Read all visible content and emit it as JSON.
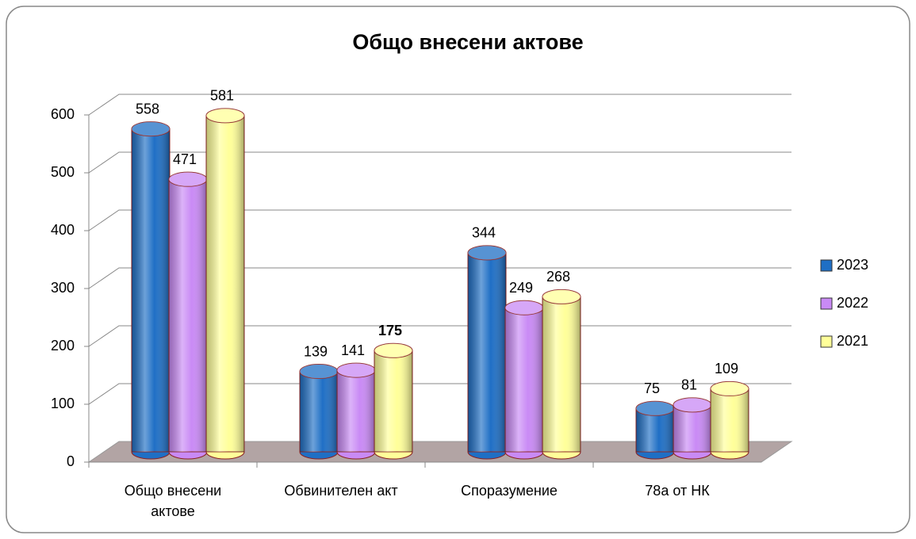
{
  "chart_data": {
    "type": "bar3d",
    "title": "Общо внесени актове",
    "categories": [
      "Общо внесени актове",
      "Обвинителен акт",
      "Споразумение",
      "78а от НК"
    ],
    "series": [
      {
        "name": "2023",
        "color": "#1f6fc5",
        "values": [
          558,
          139,
          344,
          75
        ]
      },
      {
        "name": "2022",
        "color": "#c98af5",
        "values": [
          471,
          141,
          249,
          81
        ]
      },
      {
        "name": "2021",
        "color": "#ffff99",
        "values": [
          581,
          175,
          268,
          109
        ]
      }
    ],
    "ylim": [
      0,
      600
    ],
    "yticks": [
      0,
      100,
      200,
      300,
      400,
      500,
      600
    ],
    "grid": true,
    "legend": "right"
  }
}
